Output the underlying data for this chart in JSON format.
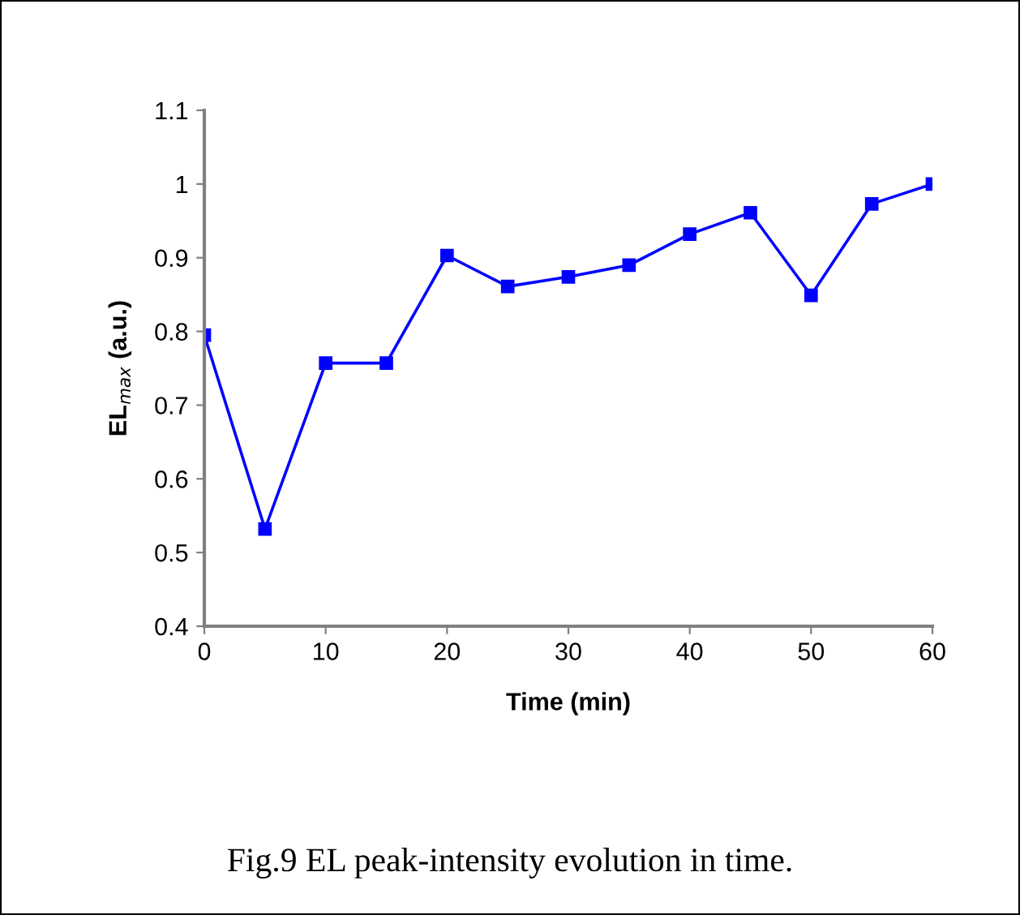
{
  "chart_data": {
    "type": "line",
    "xlabel": "Time (min)",
    "ylabel": "EL$_{max}$ (a.u.)",
    "x": [
      0,
      5,
      10,
      15,
      20,
      25,
      30,
      35,
      40,
      45,
      50,
      55,
      60
    ],
    "series": [
      {
        "color": "#0000ff",
        "values": [
          0.795,
          0.532,
          0.757,
          0.757,
          0.903,
          0.861,
          0.874,
          0.89,
          0.932,
          0.961,
          0.849,
          0.973,
          1.0
        ]
      }
    ],
    "xlim": [
      0,
      60
    ],
    "xticks": [
      0,
      10,
      20,
      30,
      40,
      50,
      60
    ],
    "ylim": [
      0.4,
      1.1
    ],
    "yticks": [
      0.4,
      0.5,
      0.6,
      0.7,
      0.8,
      0.9,
      {
        "value": 1.0,
        "label": "1"
      },
      1.1
    ],
    "grid": false,
    "legend": false,
    "marker": "square",
    "line_style": "solid",
    "annotations": [
      "Fig.9 EL peak-intensity evolution in time."
    ]
  }
}
